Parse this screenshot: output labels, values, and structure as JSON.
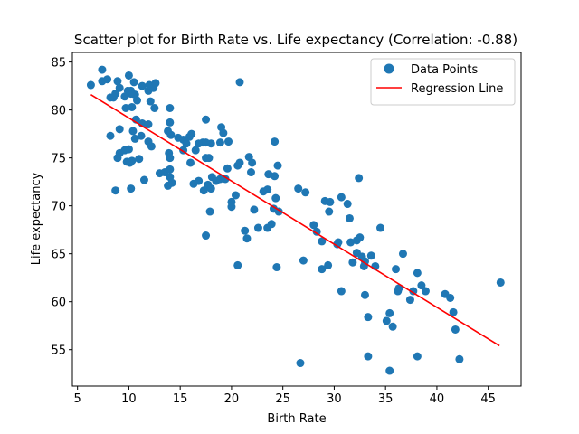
{
  "chart_data": {
    "type": "scatter",
    "title": "Scatter plot for Birth Rate vs. Life expectancy (Correlation: -0.88)",
    "xlabel": "Birth Rate",
    "ylabel": "Life expectancy",
    "xlim": [
      4.5,
      48.2
    ],
    "ylim": [
      51.2,
      86.0
    ],
    "xticks": [
      5,
      10,
      15,
      20,
      25,
      30,
      35,
      40,
      45
    ],
    "yticks": [
      55,
      60,
      65,
      70,
      75,
      80,
      85
    ],
    "grid": false,
    "legend": {
      "position": "top-right",
      "entries": [
        "Data Points",
        "Regression Line"
      ]
    },
    "colors": {
      "points": "#1f77b4",
      "regression": "#ff0000"
    },
    "series": [
      {
        "name": "Data Points",
        "kind": "scatter",
        "points": [
          [
            6.3,
            82.6
          ],
          [
            7.4,
            84.2
          ],
          [
            7.4,
            83.0
          ],
          [
            7.9,
            83.2
          ],
          [
            8.2,
            81.3
          ],
          [
            8.7,
            81.7
          ],
          [
            8.9,
            83.0
          ],
          [
            9.1,
            82.3
          ],
          [
            8.5,
            81.3
          ],
          [
            10.0,
            83.6
          ],
          [
            10.2,
            82.0
          ],
          [
            10.5,
            82.9
          ],
          [
            10.6,
            81.6
          ],
          [
            10.8,
            81.0
          ],
          [
            10.2,
            81.7
          ],
          [
            11.3,
            82.5
          ],
          [
            11.9,
            82.0
          ],
          [
            12.0,
            82.6
          ],
          [
            12.4,
            82.3
          ],
          [
            12.6,
            82.8
          ],
          [
            12.1,
            80.9
          ],
          [
            12.5,
            80.2
          ],
          [
            9.6,
            81.4
          ],
          [
            9.9,
            82.0
          ],
          [
            9.7,
            80.2
          ],
          [
            10.3,
            80.3
          ],
          [
            10.7,
            79.0
          ],
          [
            11.3,
            78.6
          ],
          [
            11.9,
            78.5
          ],
          [
            10.4,
            77.8
          ],
          [
            10.6,
            77.0
          ],
          [
            11.2,
            77.3
          ],
          [
            11.9,
            76.7
          ],
          [
            12.2,
            76.2
          ],
          [
            9.1,
            78.0
          ],
          [
            8.2,
            77.3
          ],
          [
            10.0,
            75.9
          ],
          [
            9.6,
            75.8
          ],
          [
            9.1,
            75.5
          ],
          [
            9.8,
            74.6
          ],
          [
            10.1,
            74.5
          ],
          [
            10.3,
            74.7
          ],
          [
            8.9,
            75.0
          ],
          [
            8.7,
            71.6
          ],
          [
            10.2,
            71.8
          ],
          [
            11.5,
            72.7
          ],
          [
            11.0,
            74.9
          ],
          [
            13.0,
            73.4
          ],
          [
            13.5,
            73.5
          ],
          [
            14.0,
            73.8
          ],
          [
            14.0,
            73.0
          ],
          [
            13.8,
            72.1
          ],
          [
            14.2,
            72.4
          ],
          [
            14.1,
            77.4
          ],
          [
            13.8,
            77.8
          ],
          [
            14.0,
            78.7
          ],
          [
            14.0,
            80.2
          ],
          [
            14.8,
            77.1
          ],
          [
            15.3,
            76.9
          ],
          [
            15.6,
            76.5
          ],
          [
            15.9,
            77.2
          ],
          [
            15.3,
            75.8
          ],
          [
            13.9,
            75.5
          ],
          [
            14.0,
            75.0
          ],
          [
            16.1,
            77.5
          ],
          [
            16.0,
            74.5
          ],
          [
            16.5,
            75.8
          ],
          [
            16.8,
            76.5
          ],
          [
            17.2,
            76.6
          ],
          [
            17.5,
            76.6
          ],
          [
            18.0,
            76.5
          ],
          [
            18.9,
            76.6
          ],
          [
            17.5,
            79.0
          ],
          [
            19.0,
            78.2
          ],
          [
            19.2,
            77.6
          ],
          [
            19.7,
            76.7
          ],
          [
            16.3,
            72.3
          ],
          [
            16.8,
            72.6
          ],
          [
            17.3,
            71.6
          ],
          [
            17.7,
            72.2
          ],
          [
            18.0,
            71.8
          ],
          [
            18.1,
            73.0
          ],
          [
            18.5,
            72.6
          ],
          [
            18.9,
            72.8
          ],
          [
            17.5,
            75.0
          ],
          [
            17.8,
            75.0
          ],
          [
            17.9,
            69.4
          ],
          [
            17.5,
            66.9
          ],
          [
            19.4,
            72.8
          ],
          [
            19.6,
            73.9
          ],
          [
            20.0,
            70.4
          ],
          [
            20.0,
            69.9
          ],
          [
            20.4,
            71.1
          ],
          [
            20.6,
            74.2
          ],
          [
            20.8,
            74.5
          ],
          [
            20.8,
            82.9
          ],
          [
            21.3,
            67.4
          ],
          [
            21.5,
            66.6
          ],
          [
            21.7,
            75.1
          ],
          [
            22.0,
            74.5
          ],
          [
            21.9,
            73.5
          ],
          [
            22.2,
            69.6
          ],
          [
            22.6,
            67.7
          ],
          [
            23.1,
            71.5
          ],
          [
            23.5,
            71.7
          ],
          [
            23.5,
            67.7
          ],
          [
            23.9,
            68.1
          ],
          [
            23.6,
            73.3
          ],
          [
            24.1,
            69.7
          ],
          [
            24.3,
            70.8
          ],
          [
            24.6,
            69.4
          ],
          [
            24.2,
            76.7
          ],
          [
            24.5,
            74.2
          ],
          [
            24.2,
            73.1
          ],
          [
            20.6,
            63.8
          ],
          [
            24.4,
            63.6
          ],
          [
            26.5,
            71.8
          ],
          [
            27.2,
            71.4
          ],
          [
            27.0,
            64.3
          ],
          [
            26.7,
            53.6
          ],
          [
            28.0,
            68.0
          ],
          [
            28.3,
            67.3
          ],
          [
            28.8,
            66.3
          ],
          [
            28.8,
            63.4
          ],
          [
            29.4,
            63.8
          ],
          [
            29.1,
            70.5
          ],
          [
            29.6,
            70.4
          ],
          [
            29.5,
            69.4
          ],
          [
            30.3,
            66.0
          ],
          [
            30.4,
            66.2
          ],
          [
            30.7,
            70.9
          ],
          [
            30.7,
            61.1
          ],
          [
            31.3,
            70.2
          ],
          [
            31.5,
            68.7
          ],
          [
            31.6,
            66.2
          ],
          [
            31.8,
            64.1
          ],
          [
            32.2,
            65.1
          ],
          [
            32.2,
            66.4
          ],
          [
            32.4,
            72.9
          ],
          [
            32.5,
            66.7
          ],
          [
            32.7,
            64.7
          ],
          [
            32.9,
            63.7
          ],
          [
            33.0,
            64.2
          ],
          [
            33.0,
            60.7
          ],
          [
            33.3,
            58.4
          ],
          [
            33.3,
            54.3
          ],
          [
            33.6,
            64.8
          ],
          [
            34.0,
            63.7
          ],
          [
            34.5,
            67.7
          ],
          [
            35.1,
            58.0
          ],
          [
            35.4,
            58.8
          ],
          [
            35.4,
            52.8
          ],
          [
            35.7,
            57.4
          ],
          [
            36.0,
            63.4
          ],
          [
            36.3,
            61.4
          ],
          [
            36.2,
            61.1
          ],
          [
            36.7,
            65.0
          ],
          [
            37.4,
            60.2
          ],
          [
            37.7,
            61.1
          ],
          [
            38.1,
            54.3
          ],
          [
            38.1,
            63.0
          ],
          [
            38.5,
            61.7
          ],
          [
            38.9,
            61.1
          ],
          [
            40.8,
            60.8
          ],
          [
            41.3,
            60.4
          ],
          [
            41.6,
            58.9
          ],
          [
            41.8,
            57.1
          ],
          [
            42.2,
            54.0
          ],
          [
            46.2,
            62.0
          ]
        ]
      },
      {
        "name": "Regression Line",
        "kind": "line",
        "points": [
          [
            6.3,
            81.6
          ],
          [
            46.1,
            55.4
          ]
        ]
      }
    ]
  }
}
